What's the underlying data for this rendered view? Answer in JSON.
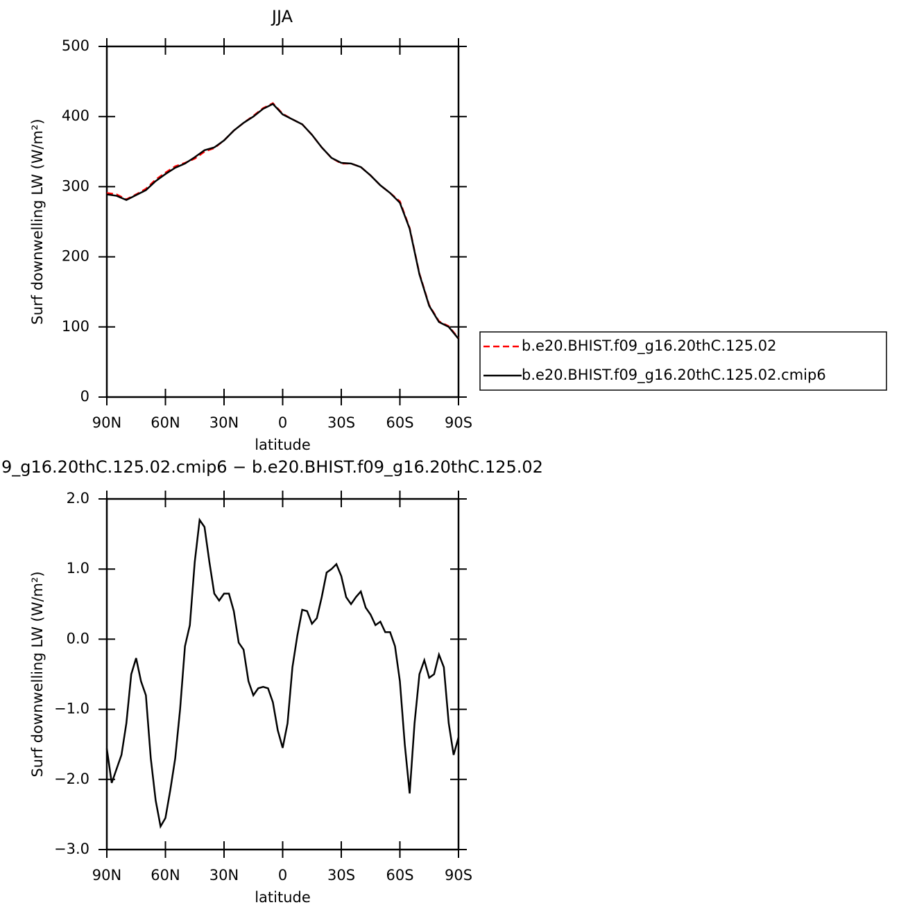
{
  "chart_data": [
    {
      "type": "line",
      "title": "JJA",
      "xlabel": "latitude",
      "ylabel": "Surf downwelling LW (W/m²)",
      "x": [
        90,
        85,
        80,
        75,
        70,
        65,
        60,
        55,
        50,
        45,
        40,
        35,
        30,
        25,
        20,
        15,
        10,
        5,
        0,
        -5,
        -10,
        -15,
        -20,
        -25,
        -30,
        -35,
        -40,
        -45,
        -50,
        -55,
        -60,
        -65,
        -70,
        -75,
        -80,
        -85,
        -90
      ],
      "series": [
        {
          "name": "b.e20.BHIST.f09_g16.20thC.125.02",
          "color": "#ff0000",
          "linestyle": "dashed",
          "values": [
            291,
            289,
            282,
            289,
            297,
            310,
            320,
            329,
            334,
            340,
            350,
            355,
            366,
            380,
            391,
            401,
            412,
            419,
            404,
            396,
            389,
            374,
            356,
            341,
            333,
            333,
            328,
            316,
            302,
            291,
            279,
            241,
            176,
            131,
            108,
            101,
            84
          ]
        },
        {
          "name": "b.e20.BHIST.f09_g16.20thC.125.02.cmip6",
          "color": "#000000",
          "linestyle": "solid",
          "values": [
            289,
            287,
            281,
            288,
            295,
            308,
            318,
            327,
            333,
            342,
            352,
            356,
            366,
            380,
            391,
            400,
            411,
            418,
            403,
            396,
            389,
            374,
            356,
            341,
            334,
            333,
            328,
            316,
            302,
            291,
            277,
            240,
            175,
            130,
            107,
            100,
            83
          ]
        }
      ],
      "xlim": [
        90,
        -90
      ],
      "xticks": [
        {
          "value": 90,
          "label": "90N"
        },
        {
          "value": 60,
          "label": "60N"
        },
        {
          "value": 30,
          "label": "30N"
        },
        0,
        {
          "value": -30,
          "label": "30S"
        },
        {
          "value": -60,
          "label": "60S"
        },
        {
          "value": -90,
          "label": "90S"
        }
      ],
      "ylim": [
        0,
        500
      ],
      "yticks": [
        0,
        100,
        200,
        300,
        400,
        500
      ],
      "legend": "right"
    },
    {
      "type": "line",
      "title": "9_g16.20thC.125.02.cmip6 − b.e20.BHIST.f09_g16.20thC.125.02",
      "xlabel": "latitude",
      "ylabel": "Surf downwelling LW (W/m²)",
      "x": [
        90,
        87.5,
        85,
        82.5,
        80,
        77.5,
        75,
        72.5,
        70,
        67.5,
        65,
        62.5,
        60,
        57.5,
        55,
        52.5,
        50,
        47.5,
        45,
        42.5,
        40,
        37.5,
        35,
        32.5,
        30,
        27.5,
        25,
        22.5,
        20,
        17.5,
        15,
        12.5,
        10,
        7.5,
        5,
        2.5,
        0,
        -2.5,
        -5,
        -7.5,
        -10,
        -12.5,
        -15,
        -17.5,
        -20,
        -22.5,
        -25,
        -27.5,
        -30,
        -32.5,
        -35,
        -37.5,
        -40,
        -42.5,
        -45,
        -47.5,
        -50,
        -52.5,
        -55,
        -57.5,
        -60,
        -62.5,
        -65,
        -67.5,
        -70,
        -72.5,
        -75,
        -77.5,
        -80,
        -82.5,
        -85,
        -87.5,
        -90
      ],
      "series": [
        {
          "name": "difference",
          "color": "#000000",
          "linestyle": "solid",
          "values": [
            -1.56,
            -2.05,
            -1.85,
            -1.65,
            -1.2,
            -0.5,
            -0.27,
            -0.6,
            -0.8,
            -1.7,
            -2.3,
            -2.67,
            -2.55,
            -2.15,
            -1.7,
            -1.0,
            -0.1,
            0.2,
            1.1,
            1.7,
            1.6,
            1.1,
            0.65,
            0.55,
            0.65,
            0.65,
            0.4,
            -0.05,
            -0.15,
            -0.6,
            -0.8,
            -0.7,
            -0.68,
            -0.7,
            -0.9,
            -1.3,
            -1.55,
            -1.2,
            -0.4,
            0.05,
            0.42,
            0.4,
            0.22,
            0.3,
            0.6,
            0.95,
            1.0,
            1.07,
            0.9,
            0.6,
            0.5,
            0.6,
            0.68,
            0.45,
            0.35,
            0.2,
            0.25,
            0.1,
            0.1,
            -0.1,
            -0.6,
            -1.5,
            -2.2,
            -1.2,
            -0.5,
            -0.3,
            -0.55,
            -0.5,
            -0.22,
            -0.4,
            -1.2,
            -1.65,
            -1.4
          ]
        }
      ],
      "xlim": [
        90,
        -90
      ],
      "xticks": [
        {
          "value": 90,
          "label": "90N"
        },
        {
          "value": 60,
          "label": "60N"
        },
        {
          "value": 30,
          "label": "30N"
        },
        0,
        {
          "value": -30,
          "label": "30S"
        },
        {
          "value": -60,
          "label": "60S"
        },
        {
          "value": -90,
          "label": "90S"
        }
      ],
      "ylim": [
        -3,
        2
      ],
      "yticks": [
        {
          "value": -3,
          "label": "−3.0"
        },
        {
          "value": -2,
          "label": "−2.0"
        },
        {
          "value": -1,
          "label": "−1.0"
        },
        {
          "value": 0,
          "label": "0.0"
        },
        {
          "value": 1,
          "label": "1.0"
        },
        {
          "value": 2,
          "label": "2.0"
        }
      ]
    }
  ]
}
